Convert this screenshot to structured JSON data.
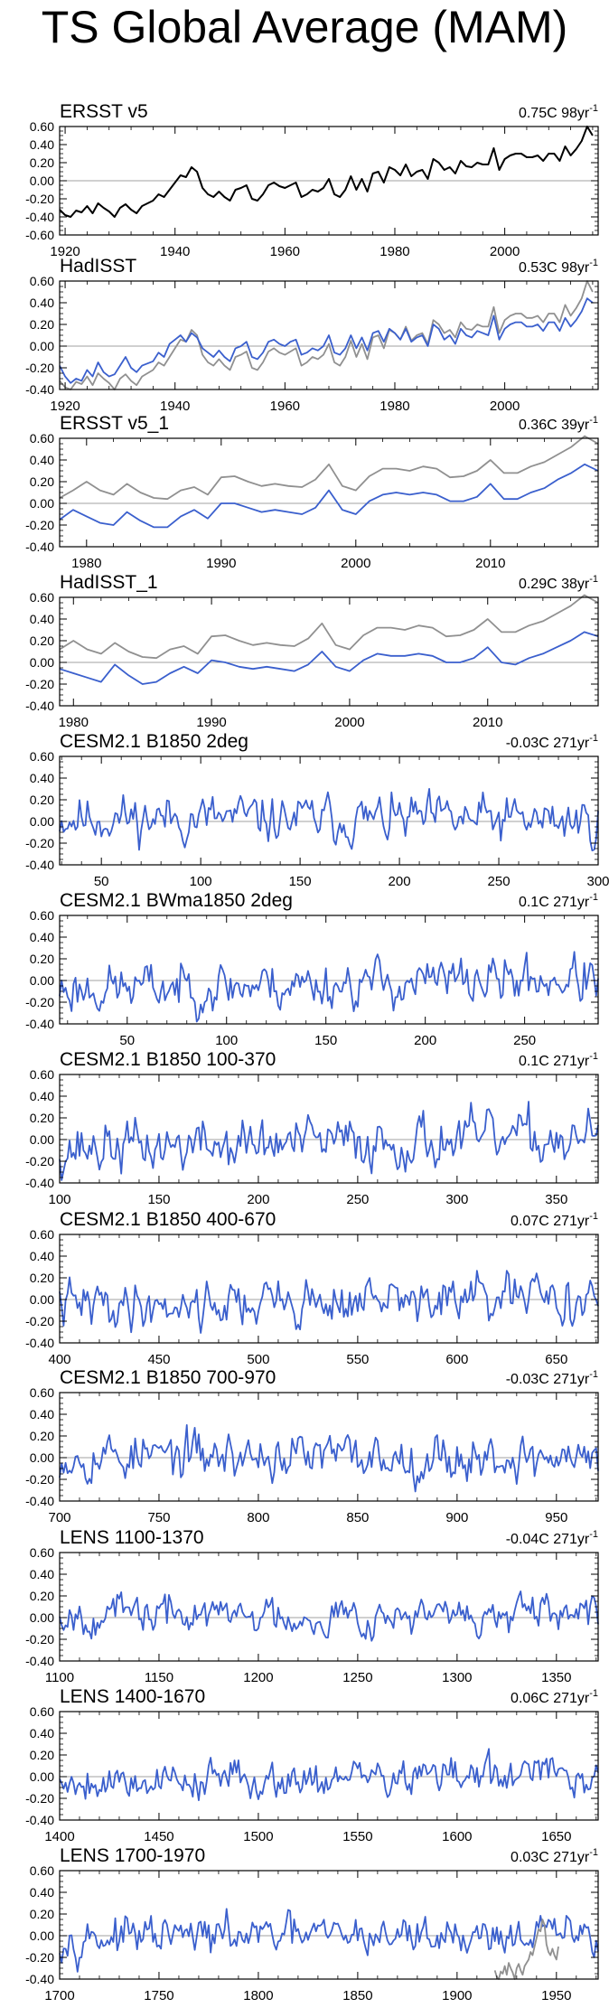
{
  "page_title": "TS Global Average (MAM)",
  "colors": {
    "obs": "#000000",
    "model": "#3a5fcd",
    "obs_gray": "#909090",
    "zero": "#a0a0a0",
    "axis": "#000000"
  },
  "chart_data": [
    {
      "type": "line",
      "title": "ERSST v5",
      "trend_value": "0.75C",
      "trend_period": "98yr",
      "trend_exp": "-1",
      "xlim": [
        1919,
        2017
      ],
      "ylim": [
        -0.6,
        0.6
      ],
      "xticks": [
        1920,
        1940,
        1960,
        1980,
        2000
      ],
      "yticks": [
        0.6,
        0.4,
        0.2,
        0.0,
        -0.2,
        -0.4,
        -0.6
      ],
      "ytick_labels": [
        "0.60",
        "0.40",
        "0.20",
        "0.00",
        "-0.20",
        "-0.40",
        "-0.60"
      ],
      "series": [
        {
          "name": "ERSST v5",
          "color_key": "obs",
          "start": 1919,
          "values": [
            -0.32,
            -0.38,
            -0.4,
            -0.33,
            -0.35,
            -0.28,
            -0.36,
            -0.25,
            -0.3,
            -0.34,
            -0.4,
            -0.3,
            -0.26,
            -0.32,
            -0.36,
            -0.28,
            -0.25,
            -0.22,
            -0.15,
            -0.18,
            -0.1,
            -0.02,
            0.06,
            0.04,
            0.15,
            0.1,
            -0.08,
            -0.15,
            -0.18,
            -0.12,
            -0.18,
            -0.22,
            -0.1,
            -0.08,
            -0.05,
            -0.2,
            -0.22,
            -0.15,
            -0.05,
            -0.02,
            -0.06,
            -0.08,
            -0.05,
            -0.02,
            -0.18,
            -0.15,
            -0.1,
            -0.12,
            -0.08,
            0.02,
            -0.15,
            -0.18,
            -0.1,
            0.05,
            -0.1,
            0.02,
            -0.12,
            0.08,
            0.1,
            -0.02,
            0.15,
            0.12,
            0.06,
            0.18,
            0.05,
            0.1,
            0.12,
            0.02,
            0.24,
            0.2,
            0.12,
            0.15,
            0.08,
            0.22,
            0.16,
            0.15,
            0.2,
            0.18,
            0.18,
            0.36,
            0.12,
            0.24,
            0.28,
            0.3,
            0.3,
            0.26,
            0.26,
            0.28,
            0.22,
            0.3,
            0.3,
            0.22,
            0.38,
            0.28,
            0.35,
            0.44,
            0.6,
            0.5
          ]
        }
      ]
    },
    {
      "type": "line",
      "title": "HadISST",
      "trend_value": "0.53C",
      "trend_period": "98yr",
      "trend_exp": "-1",
      "xlim": [
        1919,
        2017
      ],
      "ylim": [
        -0.4,
        0.6
      ],
      "xticks": [
        1920,
        1940,
        1960,
        1980,
        2000
      ],
      "yticks": [
        0.6,
        0.4,
        0.2,
        0.0,
        -0.2,
        -0.4
      ],
      "ytick_labels": [
        "0.60",
        "0.40",
        "0.20",
        "0.00",
        "-0.20",
        "-0.40"
      ],
      "series": [
        {
          "name": "ERSST v5",
          "color_key": "obs_gray",
          "start": 1919,
          "values": [
            -0.32,
            -0.38,
            -0.4,
            -0.33,
            -0.35,
            -0.28,
            -0.36,
            -0.25,
            -0.3,
            -0.34,
            -0.4,
            -0.3,
            -0.26,
            -0.32,
            -0.36,
            -0.28,
            -0.25,
            -0.22,
            -0.15,
            -0.18,
            -0.1,
            -0.02,
            0.06,
            0.04,
            0.15,
            0.1,
            -0.08,
            -0.15,
            -0.18,
            -0.12,
            -0.18,
            -0.22,
            -0.1,
            -0.08,
            -0.05,
            -0.2,
            -0.22,
            -0.15,
            -0.05,
            -0.02,
            -0.06,
            -0.08,
            -0.05,
            -0.02,
            -0.18,
            -0.15,
            -0.1,
            -0.12,
            -0.08,
            0.02,
            -0.15,
            -0.18,
            -0.1,
            0.05,
            -0.1,
            0.02,
            -0.12,
            0.08,
            0.1,
            -0.02,
            0.15,
            0.12,
            0.06,
            0.18,
            0.05,
            0.1,
            0.12,
            0.02,
            0.24,
            0.2,
            0.12,
            0.15,
            0.08,
            0.22,
            0.16,
            0.15,
            0.2,
            0.18,
            0.18,
            0.36,
            0.12,
            0.24,
            0.28,
            0.3,
            0.3,
            0.26,
            0.26,
            0.28,
            0.22,
            0.3,
            0.3,
            0.22,
            0.38,
            0.28,
            0.35,
            0.44,
            0.6,
            0.5
          ]
        },
        {
          "name": "HadISST",
          "color_key": "model",
          "start": 1919,
          "values": [
            -0.18,
            -0.28,
            -0.34,
            -0.3,
            -0.32,
            -0.22,
            -0.28,
            -0.15,
            -0.24,
            -0.28,
            -0.26,
            -0.18,
            -0.1,
            -0.2,
            -0.24,
            -0.18,
            -0.16,
            -0.14,
            -0.06,
            -0.1,
            0.02,
            0.06,
            0.1,
            0.04,
            0.12,
            0.08,
            -0.02,
            -0.06,
            -0.1,
            -0.04,
            -0.1,
            -0.14,
            -0.02,
            0.0,
            0.04,
            -0.1,
            -0.12,
            -0.06,
            0.04,
            0.06,
            0.02,
            0.0,
            0.04,
            0.06,
            -0.08,
            -0.06,
            -0.02,
            -0.04,
            0.0,
            0.1,
            -0.06,
            -0.08,
            -0.02,
            0.1,
            -0.02,
            0.08,
            -0.04,
            0.12,
            0.14,
            0.04,
            0.16,
            0.12,
            0.06,
            0.16,
            0.04,
            0.08,
            0.1,
            0.0,
            0.2,
            0.16,
            0.06,
            0.1,
            0.02,
            0.16,
            0.1,
            0.08,
            0.14,
            0.12,
            0.1,
            0.28,
            0.06,
            0.16,
            0.2,
            0.22,
            0.22,
            0.18,
            0.18,
            0.2,
            0.14,
            0.22,
            0.22,
            0.14,
            0.26,
            0.18,
            0.24,
            0.32,
            0.44,
            0.4
          ]
        }
      ]
    },
    {
      "type": "line",
      "title": "ERSST v5_1",
      "trend_value": "0.36C",
      "trend_period": "39yr",
      "trend_exp": "-1",
      "xlim": [
        1978,
        2018
      ],
      "ylim": [
        -0.4,
        0.6
      ],
      "xticks": [
        1980,
        1990,
        2000,
        2010
      ],
      "yticks": [
        0.6,
        0.4,
        0.2,
        0.0,
        -0.2,
        -0.4
      ],
      "ytick_labels": [
        "0.60",
        "0.40",
        "0.20",
        "0.00",
        "-0.20",
        "-0.40"
      ],
      "series": [
        {
          "name": "ERSST v5",
          "color_key": "obs_gray",
          "start": 1978,
          "values": [
            0.05,
            0.12,
            0.2,
            0.12,
            0.08,
            0.18,
            0.1,
            0.05,
            0.04,
            0.12,
            0.15,
            0.08,
            0.24,
            0.25,
            0.2,
            0.16,
            0.18,
            0.16,
            0.15,
            0.22,
            0.36,
            0.16,
            0.12,
            0.25,
            0.32,
            0.32,
            0.3,
            0.34,
            0.32,
            0.24,
            0.25,
            0.3,
            0.4,
            0.28,
            0.28,
            0.34,
            0.38,
            0.45,
            0.52,
            0.62,
            0.55
          ]
        },
        {
          "name": "ERSST v5_1",
          "color_key": "model",
          "start": 1978,
          "values": [
            -0.15,
            -0.06,
            -0.12,
            -0.18,
            -0.2,
            -0.08,
            -0.16,
            -0.22,
            -0.22,
            -0.12,
            -0.06,
            -0.14,
            0.0,
            0.0,
            -0.04,
            -0.08,
            -0.06,
            -0.08,
            -0.1,
            -0.04,
            0.12,
            -0.06,
            -0.1,
            0.02,
            0.08,
            0.1,
            0.08,
            0.1,
            0.08,
            0.02,
            0.02,
            0.06,
            0.18,
            0.04,
            0.04,
            0.1,
            0.14,
            0.22,
            0.28,
            0.36,
            0.3
          ]
        }
      ]
    },
    {
      "type": "line",
      "title": "HadISST_1",
      "trend_value": "0.29C",
      "trend_period": "38yr",
      "trend_exp": "-1",
      "xlim": [
        1979,
        2018
      ],
      "ylim": [
        -0.4,
        0.6
      ],
      "xticks": [
        1980,
        1990,
        2000,
        2010
      ],
      "yticks": [
        0.6,
        0.4,
        0.2,
        0.0,
        -0.2,
        -0.4
      ],
      "ytick_labels": [
        "0.60",
        "0.40",
        "0.20",
        "0.00",
        "-0.20",
        "-0.40"
      ],
      "series": [
        {
          "name": "ERSST v5",
          "color_key": "obs_gray",
          "start": 1979,
          "values": [
            0.12,
            0.2,
            0.12,
            0.08,
            0.18,
            0.1,
            0.05,
            0.04,
            0.12,
            0.15,
            0.08,
            0.24,
            0.25,
            0.2,
            0.16,
            0.18,
            0.16,
            0.15,
            0.22,
            0.36,
            0.16,
            0.12,
            0.25,
            0.32,
            0.32,
            0.3,
            0.34,
            0.32,
            0.24,
            0.25,
            0.3,
            0.4,
            0.28,
            0.28,
            0.34,
            0.38,
            0.45,
            0.52,
            0.62,
            0.55
          ]
        },
        {
          "name": "HadISST_1",
          "color_key": "model",
          "start": 1979,
          "values": [
            -0.06,
            -0.1,
            -0.14,
            -0.18,
            -0.02,
            -0.12,
            -0.2,
            -0.18,
            -0.1,
            -0.04,
            -0.1,
            0.02,
            0.0,
            -0.04,
            -0.06,
            -0.04,
            -0.06,
            -0.08,
            -0.02,
            0.1,
            -0.04,
            -0.08,
            0.02,
            0.08,
            0.06,
            0.06,
            0.08,
            0.06,
            0.0,
            0.0,
            0.04,
            0.14,
            0.0,
            -0.02,
            0.04,
            0.08,
            0.14,
            0.2,
            0.28,
            0.24
          ]
        }
      ]
    },
    {
      "type": "line",
      "title": "CESM2.1 B1850 2deg",
      "trend_value": "-0.03C",
      "trend_period": "271yr",
      "trend_exp": "-1",
      "xlim": [
        29,
        300
      ],
      "ylim": [
        -0.4,
        0.6
      ],
      "xticks": [
        50,
        100,
        150,
        200,
        250,
        300
      ],
      "yticks": [
        0.6,
        0.4,
        0.2,
        0.0,
        -0.2,
        -0.4
      ],
      "ytick_labels": [
        "0.60",
        "0.40",
        "0.20",
        "0.00",
        "-0.20",
        "-0.40"
      ],
      "series": [
        {
          "name": "CESM2.1 B1850 2deg",
          "color_key": "model",
          "start": 29,
          "count": 272,
          "seed": 11,
          "amp": 0.1,
          "trend": -0.03,
          "offset": 0.02
        }
      ]
    },
    {
      "type": "line",
      "title": "CESM2.1 BWma1850 2deg",
      "trend_value": "0.1C",
      "trend_period": "271yr",
      "trend_exp": "-1",
      "xlim": [
        16,
        287
      ],
      "ylim": [
        -0.4,
        0.6
      ],
      "xticks": [
        50,
        100,
        150,
        200,
        250
      ],
      "yticks": [
        0.6,
        0.4,
        0.2,
        0.0,
        -0.2,
        -0.4
      ],
      "ytick_labels": [
        "0.60",
        "0.40",
        "0.20",
        "0.00",
        "-0.20",
        "-0.40"
      ],
      "series": [
        {
          "name": "CESM2.1 BWma1850 2deg",
          "color_key": "model",
          "start": 16,
          "count": 272,
          "seed": 23,
          "amp": 0.1,
          "trend": 0.1,
          "offset": -0.03
        }
      ]
    },
    {
      "type": "line",
      "title": "CESM2.1 B1850 100-370",
      "trend_value": "0.1C",
      "trend_period": "271yr",
      "trend_exp": "-1",
      "xlim": [
        100,
        371
      ],
      "ylim": [
        -0.4,
        0.6
      ],
      "xticks": [
        100,
        150,
        200,
        250,
        300,
        350
      ],
      "yticks": [
        0.6,
        0.4,
        0.2,
        0.0,
        -0.2,
        -0.4
      ],
      "ytick_labels": [
        "0.60",
        "0.40",
        "0.20",
        "0.00",
        "-0.20",
        "-0.40"
      ],
      "series": [
        {
          "name": "CESM2.1 B1850 100-370",
          "color_key": "model",
          "start": 100,
          "count": 272,
          "seed": 37,
          "amp": 0.11,
          "trend": 0.1,
          "offset": -0.03
        }
      ]
    },
    {
      "type": "line",
      "title": "CESM2.1 B1850 400-670",
      "trend_value": "0.07C",
      "trend_period": "271yr",
      "trend_exp": "-1",
      "xlim": [
        400,
        671
      ],
      "ylim": [
        -0.4,
        0.6
      ],
      "xticks": [
        400,
        450,
        500,
        550,
        600,
        650
      ],
      "yticks": [
        0.6,
        0.4,
        0.2,
        0.0,
        -0.2,
        -0.4
      ],
      "ytick_labels": [
        "0.60",
        "0.40",
        "0.20",
        "0.00",
        "-0.20",
        "-0.40"
      ],
      "series": [
        {
          "name": "CESM2.1 B1850 400-670",
          "color_key": "model",
          "start": 400,
          "count": 272,
          "seed": 41,
          "amp": 0.1,
          "trend": 0.07,
          "offset": -0.02
        }
      ]
    },
    {
      "type": "line",
      "title": "CESM2.1 B1850 700-970",
      "trend_value": "-0.03C",
      "trend_period": "271yr",
      "trend_exp": "-1",
      "xlim": [
        700,
        971
      ],
      "ylim": [
        -0.4,
        0.6
      ],
      "xticks": [
        700,
        750,
        800,
        850,
        900,
        950
      ],
      "yticks": [
        0.6,
        0.4,
        0.2,
        0.0,
        -0.2,
        -0.4
      ],
      "ytick_labels": [
        "0.60",
        "0.40",
        "0.20",
        "0.00",
        "-0.20",
        "-0.40"
      ],
      "series": [
        {
          "name": "CESM2.1 B1850 700-970",
          "color_key": "model",
          "start": 700,
          "count": 272,
          "seed": 53,
          "amp": 0.1,
          "trend": -0.03,
          "offset": 0.01
        }
      ]
    },
    {
      "type": "line",
      "title": "LENS 1100-1370",
      "trend_value": "-0.04C",
      "trend_period": "271yr",
      "trend_exp": "-1",
      "xlim": [
        1100,
        1371
      ],
      "ylim": [
        -0.4,
        0.6
      ],
      "xticks": [
        1100,
        1150,
        1200,
        1250,
        1300,
        1350
      ],
      "yticks": [
        0.6,
        0.4,
        0.2,
        0.0,
        -0.2,
        -0.4
      ],
      "ytick_labels": [
        "0.60",
        "0.40",
        "0.20",
        "0.00",
        "-0.20",
        "-0.40"
      ],
      "series": [
        {
          "name": "LENS 1100-1370",
          "color_key": "model",
          "start": 1100,
          "count": 272,
          "seed": 67,
          "amp": 0.08,
          "trend": -0.04,
          "offset": 0.02
        }
      ]
    },
    {
      "type": "line",
      "title": "LENS 1400-1670",
      "trend_value": "0.06C",
      "trend_period": "271yr",
      "trend_exp": "-1",
      "xlim": [
        1400,
        1671
      ],
      "ylim": [
        -0.4,
        0.6
      ],
      "xticks": [
        1400,
        1450,
        1500,
        1550,
        1600,
        1650
      ],
      "yticks": [
        0.6,
        0.4,
        0.2,
        0.0,
        -0.2,
        -0.4
      ],
      "ytick_labels": [
        "0.60",
        "0.40",
        "0.20",
        "0.00",
        "-0.20",
        "-0.40"
      ],
      "series": [
        {
          "name": "LENS 1400-1670",
          "color_key": "model",
          "start": 1400,
          "count": 272,
          "seed": 79,
          "amp": 0.08,
          "trend": 0.06,
          "offset": -0.01
        }
      ]
    },
    {
      "type": "line",
      "title": "LENS 1700-1970",
      "trend_value": "0.03C",
      "trend_period": "271yr",
      "trend_exp": "-1",
      "xlim": [
        1700,
        1971
      ],
      "ylim": [
        -0.4,
        0.6
      ],
      "xticks": [
        1700,
        1750,
        1800,
        1850,
        1900,
        1950
      ],
      "yticks": [
        0.6,
        0.4,
        0.2,
        0.0,
        -0.2,
        -0.4
      ],
      "ytick_labels": [
        "0.60",
        "0.40",
        "0.20",
        "0.00",
        "-0.20",
        "-0.40"
      ],
      "series": [
        {
          "name": "LENS 1700-1970",
          "color_key": "model",
          "start": 1700,
          "count": 272,
          "seed": 97,
          "amp": 0.08,
          "trend": 0.03,
          "offset": 0.0
        },
        {
          "name": "ERSST v5",
          "color_key": "obs_gray",
          "start": 1919,
          "values": [
            -0.32,
            -0.38,
            -0.4,
            -0.33,
            -0.35,
            -0.28,
            -0.36,
            -0.25,
            -0.3,
            -0.34,
            -0.4,
            -0.3,
            -0.26,
            -0.32,
            -0.36,
            -0.28,
            -0.25,
            -0.22,
            -0.15,
            -0.18,
            -0.1,
            -0.02,
            0.06,
            0.04,
            0.15,
            0.1,
            -0.08,
            -0.15,
            -0.18,
            -0.12,
            -0.18,
            -0.22,
            -0.1
          ]
        }
      ]
    }
  ]
}
